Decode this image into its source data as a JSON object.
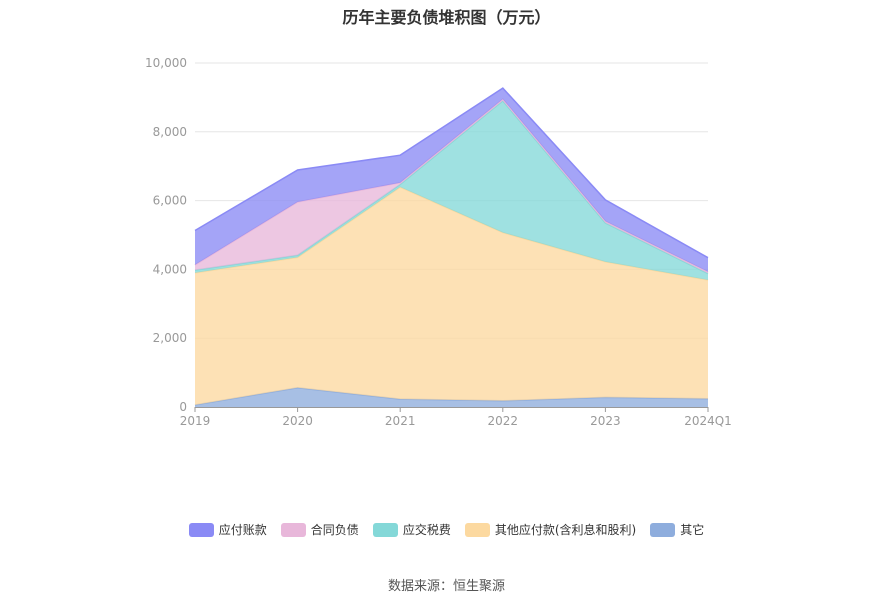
{
  "chart_data": {
    "type": "area",
    "stacked": true,
    "title": "历年主要负债堆积图（万元）",
    "categories": [
      "2019",
      "2020",
      "2021",
      "2022",
      "2023",
      "2024Q1"
    ],
    "ylim": [
      0,
      10000
    ],
    "yticks": [
      0,
      2000,
      4000,
      6000,
      8000,
      10000
    ],
    "ytick_labels": [
      "0",
      "2,000",
      "4,000",
      "6,000",
      "8,000",
      "10,000"
    ],
    "grid": true,
    "legend_position": "bottom",
    "series": [
      {
        "name": "其它",
        "color": "#8eaddd",
        "values": [
          60,
          560,
          230,
          180,
          280,
          240
        ]
      },
      {
        "name": "其他应付款(含利息和股利)",
        "color": "#fcd9a0",
        "values": [
          3840,
          3790,
          6160,
          4890,
          3940,
          3450
        ]
      },
      {
        "name": "应交税费",
        "color": "#84d8d8",
        "values": [
          80,
          60,
          80,
          3830,
          1130,
          190
        ]
      },
      {
        "name": "合同负债",
        "color": "#e8b7da",
        "values": [
          150,
          1550,
          50,
          50,
          50,
          50
        ]
      },
      {
        "name": "应付账款",
        "color": "#8a8af5",
        "values": [
          1000,
          930,
          800,
          320,
          620,
          410
        ]
      }
    ],
    "legend_order": [
      "应付账款",
      "合同负债",
      "应交税费",
      "其他应付款(含利息和股利)",
      "其它"
    ]
  },
  "source_note": "数据来源：恒生聚源"
}
